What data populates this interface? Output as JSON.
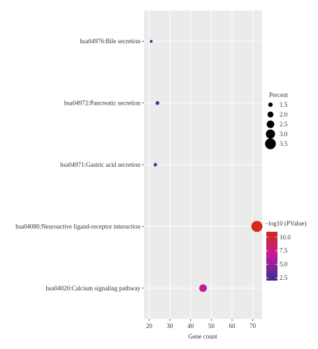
{
  "chart_data": {
    "type": "scatter",
    "subtype": "bubble",
    "title": "",
    "xlabel": "Gene count",
    "ylabel": "",
    "xlim": [
      17.5,
      74.5
    ],
    "xticks": [
      20,
      30,
      40,
      50,
      60,
      70
    ],
    "xtick_labels": [
      "20",
      "30",
      "40",
      "50",
      "60",
      "70"
    ],
    "categories": [
      "hsa04976:Bile secretion",
      "hsa04972:Pancreatic secretion",
      "hsa04971:Gastric acid secretion",
      "hsa04080:Neuroactive ligand-receptor interaction",
      "hsa04020:Calcium signaling pathway"
    ],
    "points": [
      {
        "category": "hsa04976:Bile secretion",
        "x": 21,
        "percent": 1.0,
        "neg_log10_p": 2.5
      },
      {
        "category": "hsa04972:Pancreatic secretion",
        "x": 24,
        "percent": 1.3,
        "neg_log10_p": 2.6
      },
      {
        "category": "hsa04971:Gastric acid secretion",
        "x": 23,
        "percent": 1.2,
        "neg_log10_p": 3.2
      },
      {
        "category": "hsa04080:Neuroactive ligand-receptor interaction",
        "x": 72,
        "percent": 3.6,
        "neg_log10_p": 11.0
      },
      {
        "category": "hsa04020:Calcium signaling pathway",
        "x": 46,
        "percent": 2.5,
        "neg_log10_p": 6.5
      }
    ],
    "grid": true,
    "size_legend": {
      "title": "Percent",
      "values": [
        1.5,
        2.0,
        2.5,
        3.0,
        3.5
      ],
      "labels": [
        "1.5",
        "2.0",
        "2.5",
        "3.0",
        "3.5"
      ]
    },
    "color_legend": {
      "title": "−log10 (PValue)",
      "range": [
        2.0,
        11.0
      ],
      "ticks": [
        10.0,
        7.5,
        5.0,
        2.5
      ],
      "tick_labels": [
        "10.0",
        "7.5",
        "5.0",
        "2.5"
      ],
      "colors": [
        "#3a2b98",
        "#c0199a",
        "#d42a1e"
      ]
    },
    "legend_position": "right"
  }
}
